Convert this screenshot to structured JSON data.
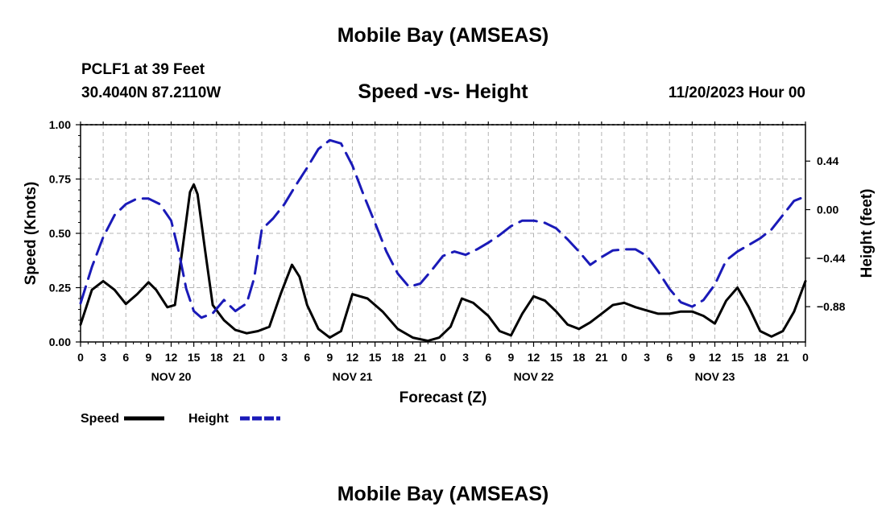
{
  "header": {
    "title": "Mobile Bay (AMSEAS)",
    "station": "PCLF1 at 39 Feet",
    "coords": "30.4040N  87.2110W",
    "date": "11/20/2023 Hour 00"
  },
  "footer": {
    "title": "Mobile Bay (AMSEAS)"
  },
  "chart_data": {
    "type": "line",
    "title": "Speed -vs- Height",
    "xlabel": "Forecast (Z)",
    "ylabel_left": "Speed (Knots)",
    "ylabel_right": "Height (feet)",
    "x_unit": "forecast hour",
    "xlim": [
      0,
      96
    ],
    "x_tick_hours": [
      0,
      3,
      6,
      9,
      12,
      15,
      18,
      21,
      24,
      27,
      30,
      33,
      36,
      39,
      42,
      45,
      48,
      51,
      54,
      57,
      60,
      63,
      66,
      69,
      72,
      75,
      78,
      81,
      84,
      87,
      90,
      93,
      96
    ],
    "x_tick_labels": [
      "0",
      "3",
      "6",
      "9",
      "12",
      "15",
      "18",
      "21",
      "0",
      "3",
      "6",
      "9",
      "12",
      "15",
      "18",
      "21",
      "0",
      "3",
      "6",
      "9",
      "12",
      "15",
      "18",
      "21",
      "0",
      "3",
      "6",
      "9",
      "12",
      "15",
      "18",
      "21",
      "0"
    ],
    "day_labels": [
      {
        "hour": 12,
        "label": "NOV 20"
      },
      {
        "hour": 36,
        "label": "NOV 21"
      },
      {
        "hour": 60,
        "label": "NOV 22"
      },
      {
        "hour": 84,
        "label": "NOV 23"
      }
    ],
    "ylim_left": [
      0,
      1
    ],
    "y_ticks_left": [
      0,
      0.25,
      0.5,
      0.75,
      1
    ],
    "y_tick_labels_left": [
      "0.00",
      "0.25",
      "0.50",
      "0.75",
      "1.00"
    ],
    "ylim_right": [
      -1.2,
      0.77
    ],
    "y_ticks_right": [
      -0.88,
      -0.44,
      0,
      0.44
    ],
    "y_tick_labels_right": [
      "−0.88",
      "−0.44",
      "0.00",
      "0.44"
    ],
    "grid": true,
    "series": [
      {
        "name": "Speed",
        "axis": "left",
        "color": "#000000",
        "style": "solid",
        "x": [
          0,
          1.5,
          3,
          4.5,
          6,
          7.5,
          9,
          10,
          11.5,
          12.5,
          13.5,
          14.5,
          15,
          15.5,
          16.5,
          17.5,
          19,
          20.5,
          22,
          23.5,
          25,
          26.5,
          28,
          29,
          30,
          31.5,
          33,
          34.5,
          36,
          38,
          40,
          42,
          44,
          46,
          47.5,
          49,
          50.5,
          52,
          54,
          55.5,
          57,
          58.5,
          60,
          61.5,
          63,
          64.5,
          66,
          67.5,
          69,
          70.5,
          72,
          73.5,
          75,
          76.5,
          78,
          79.5,
          81,
          82.5,
          84,
          85.5,
          87,
          88.5,
          90,
          91.5,
          93,
          94.5,
          96
        ],
        "y": [
          0.08,
          0.24,
          0.28,
          0.24,
          0.175,
          0.22,
          0.275,
          0.24,
          0.16,
          0.17,
          0.43,
          0.69,
          0.725,
          0.68,
          0.42,
          0.17,
          0.1,
          0.055,
          0.04,
          0.05,
          0.07,
          0.22,
          0.355,
          0.3,
          0.17,
          0.06,
          0.02,
          0.05,
          0.22,
          0.2,
          0.14,
          0.06,
          0.02,
          0.005,
          0.02,
          0.07,
          0.2,
          0.18,
          0.12,
          0.05,
          0.03,
          0.13,
          0.21,
          0.19,
          0.14,
          0.08,
          0.06,
          0.09,
          0.13,
          0.17,
          0.18,
          0.16,
          0.145,
          0.13,
          0.13,
          0.14,
          0.14,
          0.12,
          0.085,
          0.19,
          0.25,
          0.16,
          0.05,
          0.025,
          0.05,
          0.14,
          0.28
        ]
      },
      {
        "name": "Height",
        "axis": "right",
        "color": "#1a1ab8",
        "style": "dashed",
        "x": [
          0,
          1.5,
          3,
          4.5,
          6,
          7.5,
          9,
          10.5,
          12,
          13,
          14,
          15,
          16,
          17.5,
          19,
          20.5,
          22,
          23,
          24,
          25.5,
          27,
          28.5,
          30,
          31.5,
          33,
          34.5,
          36,
          37.5,
          39,
          40.5,
          42,
          43.5,
          45,
          46.5,
          48,
          49.5,
          51,
          52.5,
          54,
          55.5,
          57,
          58.5,
          60,
          61.5,
          63,
          64.5,
          66,
          67.5,
          69,
          70.5,
          72,
          73.5,
          75,
          76.5,
          78,
          79.5,
          81,
          82.5,
          84,
          85.5,
          87,
          88.5,
          90,
          91.5,
          93,
          94.5,
          96
        ],
        "y": [
          -0.85,
          -0.52,
          -0.25,
          -0.05,
          0.05,
          0.1,
          0.1,
          0.05,
          -0.1,
          -0.38,
          -0.72,
          -0.92,
          -0.98,
          -0.94,
          -0.82,
          -0.92,
          -0.85,
          -0.62,
          -0.18,
          -0.08,
          0.05,
          0.22,
          0.38,
          0.55,
          0.63,
          0.6,
          0.4,
          0.13,
          -0.12,
          -0.38,
          -0.58,
          -0.7,
          -0.67,
          -0.55,
          -0.42,
          -0.38,
          -0.41,
          -0.36,
          -0.3,
          -0.23,
          -0.15,
          -0.1,
          -0.1,
          -0.12,
          -0.17,
          -0.27,
          -0.38,
          -0.5,
          -0.43,
          -0.37,
          -0.36,
          -0.36,
          -0.42,
          -0.56,
          -0.72,
          -0.84,
          -0.88,
          -0.82,
          -0.68,
          -0.46,
          -0.38,
          -0.32,
          -0.26,
          -0.18,
          -0.05,
          0.08,
          0.12
        ]
      }
    ],
    "legend": [
      {
        "label": "Speed",
        "color": "#000000",
        "style": "solid"
      },
      {
        "label": "Height",
        "color": "#1a1ab8",
        "style": "dashed"
      }
    ],
    "legend_position": "bottom-left"
  }
}
